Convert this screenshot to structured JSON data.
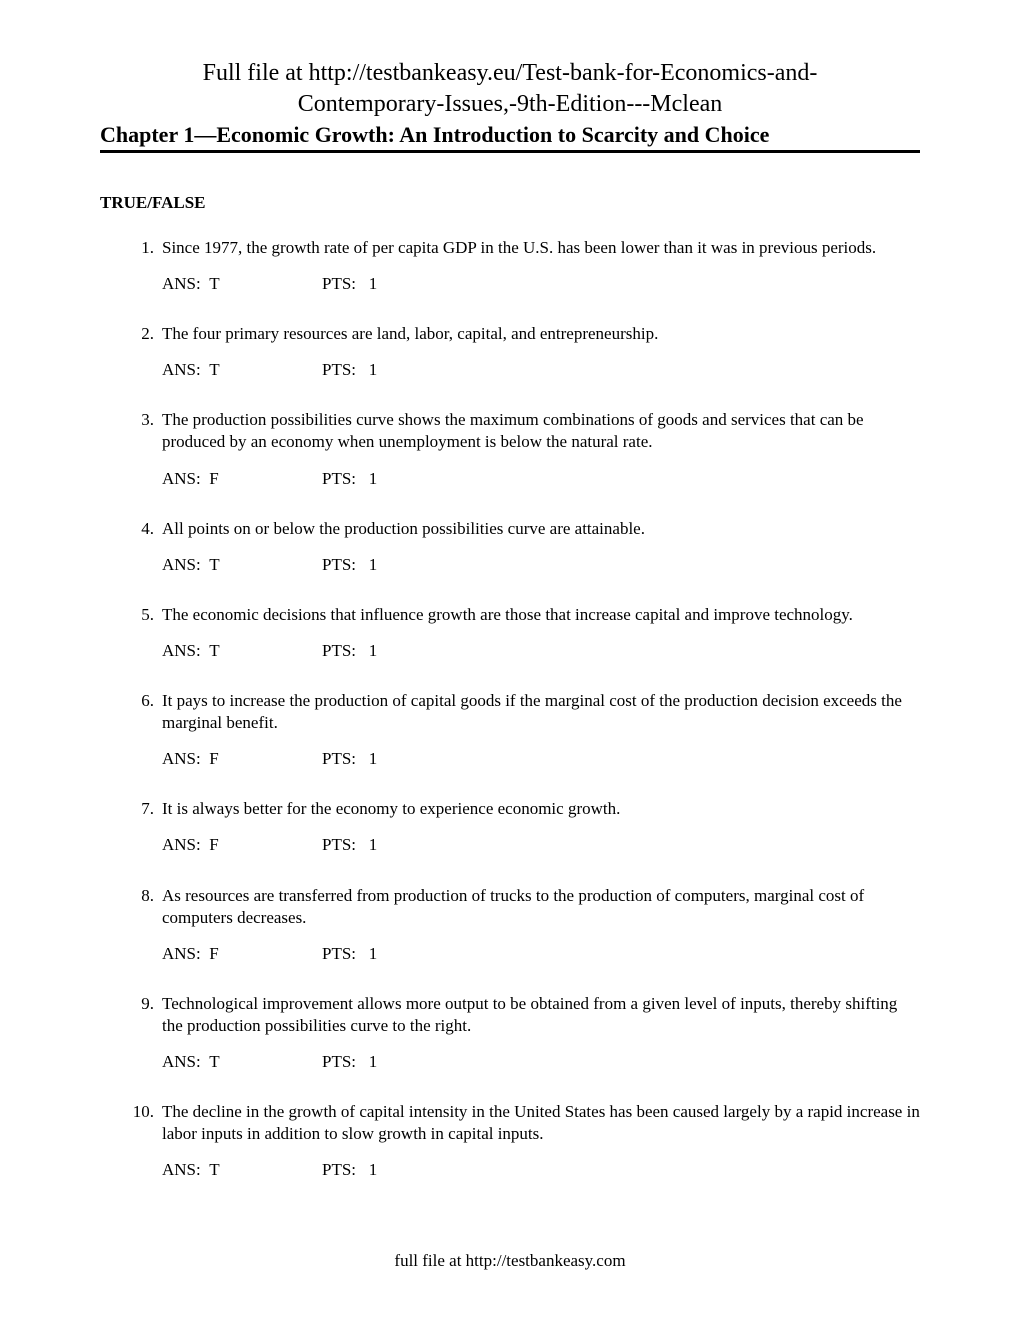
{
  "header": {
    "line1": "Full file at http://testbankeasy.eu/Test-bank-for-Economics-and-",
    "line2": "Contemporary-Issues,-9th-Edition---Mclean"
  },
  "chapter_title": "Chapter 1—Economic Growth: An Introduction to Scarcity and Choice",
  "section_title": "TRUE/FALSE",
  "labels": {
    "ans_prefix": "ANS:",
    "pts_prefix": "PTS:"
  },
  "questions": [
    {
      "num": "1.",
      "text": "Since 1977, the growth rate of per capita GDP in the U.S. has been lower than it was in previous periods.",
      "ans": "T",
      "pts": "1"
    },
    {
      "num": "2.",
      "text": "The four primary resources are land, labor, capital, and entrepreneurship.",
      "ans": "T",
      "pts": "1"
    },
    {
      "num": "3.",
      "text": "The production possibilities curve shows the maximum combinations of goods and services that can be produced by an economy when unemployment is below the natural rate.",
      "ans": "F",
      "pts": "1"
    },
    {
      "num": "4.",
      "text": "All points on or below the production possibilities curve are attainable.",
      "ans": "T",
      "pts": "1"
    },
    {
      "num": "5.",
      "text": "The economic decisions that influence growth are those that increase capital and improve technology.",
      "ans": "T",
      "pts": "1"
    },
    {
      "num": "6.",
      "text": "It pays to increase the production of capital goods if the marginal cost of the production decision exceeds the marginal benefit.",
      "ans": "F",
      "pts": "1"
    },
    {
      "num": "7.",
      "text": "It is always better for the economy to experience economic growth.",
      "ans": "F",
      "pts": "1"
    },
    {
      "num": "8.",
      "text": "As resources are transferred from production of trucks to the production of computers, marginal cost of computers decreases.",
      "ans": "F",
      "pts": "1"
    },
    {
      "num": "9.",
      "text": "Technological improvement allows more output to be obtained from a given level of inputs, thereby shifting the production possibilities curve to the right.",
      "ans": "T",
      "pts": "1"
    },
    {
      "num": "10.",
      "text": "The decline in the growth of capital intensity in the United States has been caused largely by a rapid increase in labor inputs in addition to slow growth in capital inputs.",
      "ans": "T",
      "pts": "1"
    }
  ],
  "footer": "full file at http://testbankeasy.com"
}
